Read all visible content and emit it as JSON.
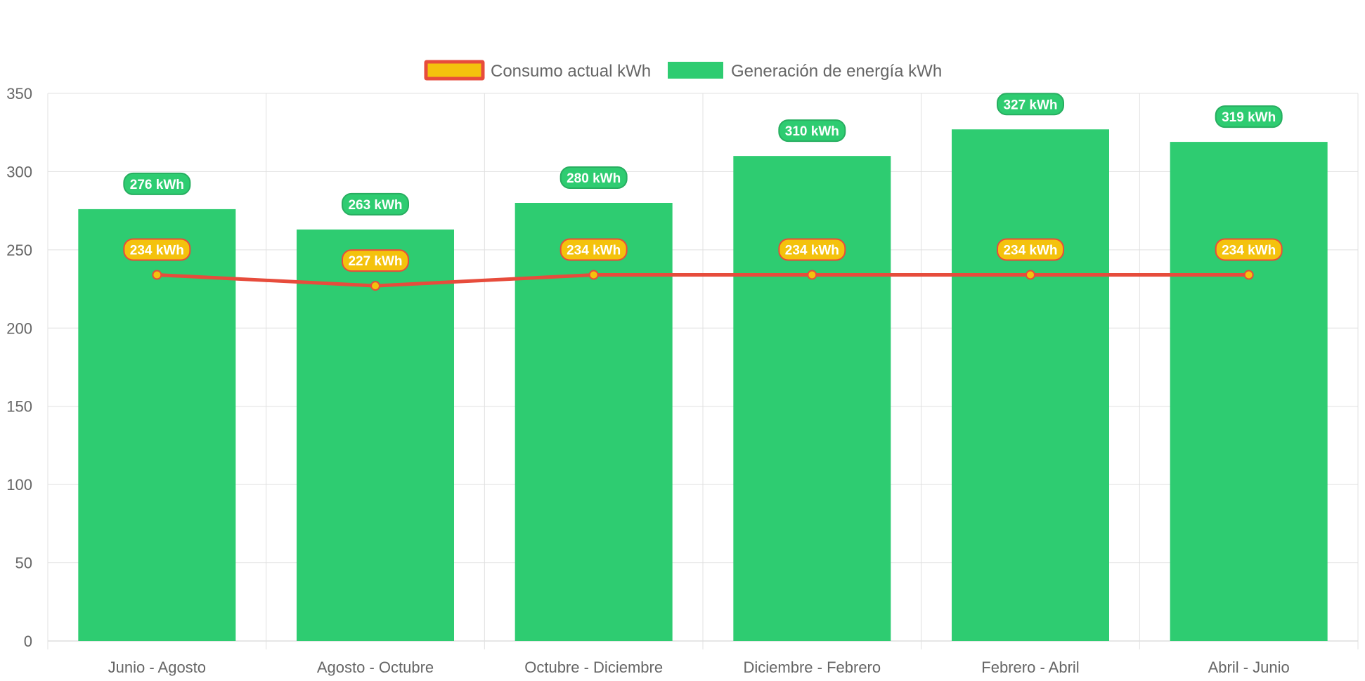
{
  "chart_data": {
    "type": "bar",
    "title": "",
    "xlabel": "",
    "ylabel": "",
    "ylim": [
      0,
      350
    ],
    "yticks": [
      0,
      50,
      100,
      150,
      200,
      250,
      300,
      350
    ],
    "ytick_labels": [
      "0",
      "50",
      "100",
      "150",
      "200",
      "250",
      "300",
      "350"
    ],
    "grid": true,
    "legend_position": "top-center",
    "categories": [
      "Junio - Agosto",
      "Agosto - Octubre",
      "Octubre - Diciembre",
      "Diciembre - Febrero",
      "Febrero - Abril",
      "Abril - Junio"
    ],
    "series": [
      {
        "name": "Consumo actual kWh",
        "type": "line",
        "values": [
          234,
          227,
          234,
          234,
          234,
          234
        ],
        "data_labels": [
          "234 kWh",
          "227 kWh",
          "234 kWh",
          "234 kWh",
          "234 kWh",
          "234 kWh"
        ],
        "line_color": "#E74C3C",
        "fill_color": "#F4C20D"
      },
      {
        "name": "Generación de energía kWh",
        "type": "bar",
        "values": [
          276,
          263,
          280,
          310,
          327,
          319
        ],
        "data_labels": [
          "276 kWh",
          "263 kWh",
          "280 kWh",
          "310 kWh",
          "327 kWh",
          "319 kWh"
        ],
        "fill_color": "#2ECC71",
        "border_color": "#27AE60"
      }
    ],
    "colors": {
      "grid": "#e0e0e0",
      "axis": "#cccccc",
      "text": "#666666"
    }
  }
}
